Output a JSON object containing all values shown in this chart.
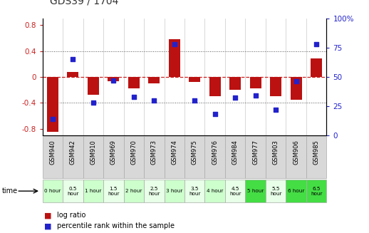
{
  "title": "GDS39 / 1704",
  "samples": [
    "GSM940",
    "GSM942",
    "GSM910",
    "GSM969",
    "GSM970",
    "GSM973",
    "GSM974",
    "GSM975",
    "GSM976",
    "GSM984",
    "GSM977",
    "GSM903",
    "GSM906",
    "GSM985"
  ],
  "time_labels": [
    "0 hour",
    "0.5\nhour",
    "1 hour",
    "1.5\nhour",
    "2 hour",
    "2.5\nhour",
    "3 hour",
    "3.5\nhour",
    "4 hour",
    "4.5\nhour",
    "5 hour",
    "5.5\nhour",
    "6 hour",
    "6.5\nhour"
  ],
  "time_bg_colors": [
    "#ccffcc",
    "#e8ffe8",
    "#ccffcc",
    "#e8ffe8",
    "#ccffcc",
    "#e8ffe8",
    "#ccffcc",
    "#e8ffe8",
    "#ccffcc",
    "#e8ffe8",
    "#44dd44",
    "#e8ffe8",
    "#44dd44",
    "#44dd44"
  ],
  "log_ratio": [
    -0.85,
    0.08,
    -0.28,
    -0.07,
    -0.18,
    -0.1,
    0.58,
    -0.08,
    -0.3,
    -0.2,
    -0.18,
    -0.3,
    -0.35,
    0.28
  ],
  "percentile": [
    14,
    65,
    28,
    47,
    33,
    30,
    78,
    30,
    18,
    32,
    34,
    22,
    46,
    78
  ],
  "ylim_left": [
    -0.9,
    0.9
  ],
  "ylim_right": [
    0,
    100
  ],
  "yticks_left": [
    -0.8,
    -0.4,
    0.0,
    0.4,
    0.8
  ],
  "yticks_right": [
    0,
    25,
    50,
    75,
    100
  ],
  "bar_color": "#bb1111",
  "dot_color": "#2222cc",
  "zero_line_color": "#cc2222",
  "plot_bg": "#ffffff",
  "gsm_bg": "#d8d8d8",
  "gsm_border": "#aaaaaa",
  "title_color": "#333333",
  "left_axis_color": "#cc2222",
  "right_axis_color": "#2222cc"
}
